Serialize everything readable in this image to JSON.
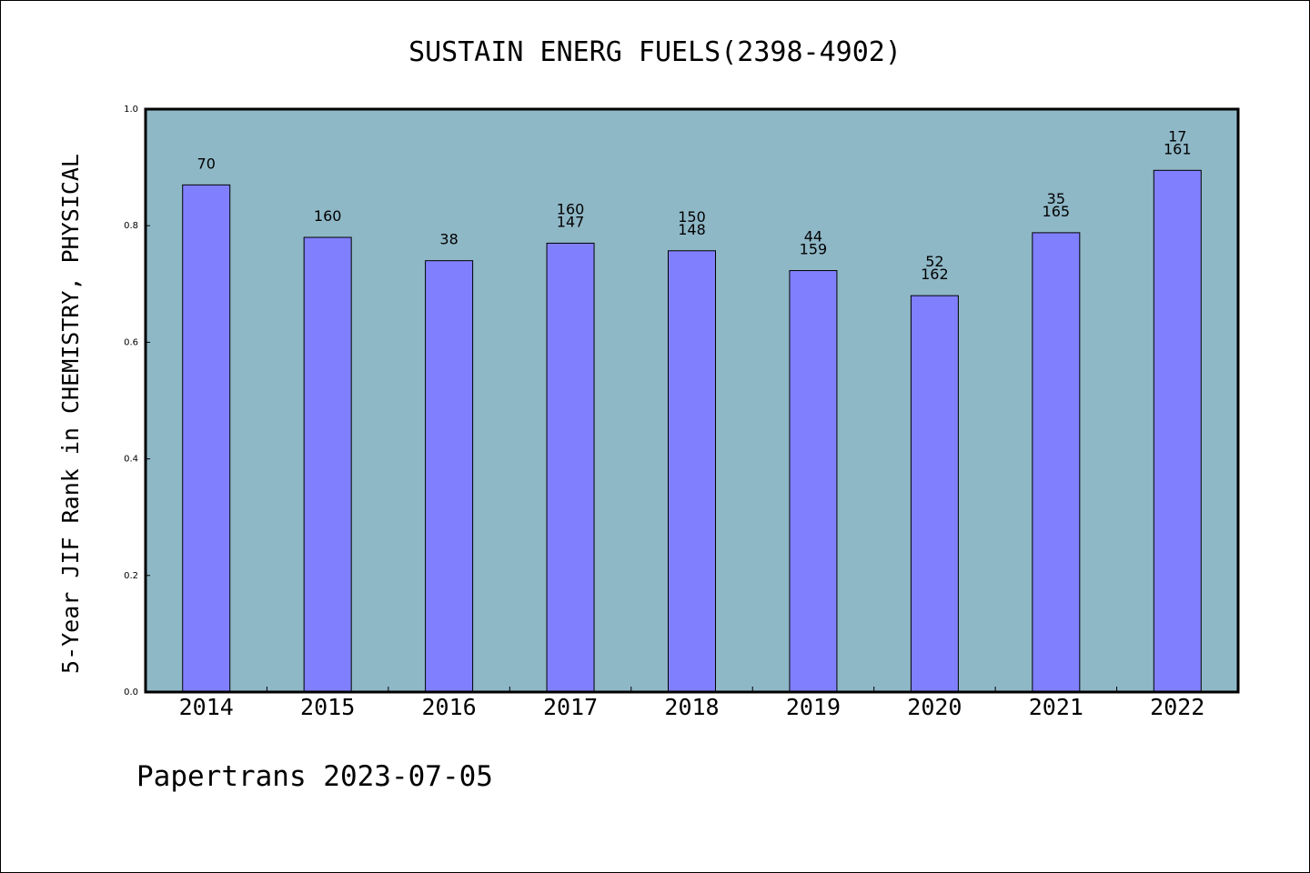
{
  "chart_data": {
    "type": "bar",
    "title": "SUSTAIN ENERG FUELS(2398-4902)",
    "ylabel": "5-Year JIF Rank in CHEMISTRY, PHYSICAL",
    "xlabel": "",
    "ylim": [
      0.0,
      1.0
    ],
    "yticks": [
      "0.0",
      "0.2",
      "0.4",
      "0.6",
      "0.8",
      "1.0"
    ],
    "categories": [
      "2014",
      "2015",
      "2016",
      "2017",
      "2018",
      "2019",
      "2020",
      "2021",
      "2022"
    ],
    "values": [
      0.87,
      0.78,
      0.74,
      0.77,
      0.757,
      0.723,
      0.68,
      0.788,
      0.895
    ],
    "bar_labels": [
      [
        "70"
      ],
      [
        "160"
      ],
      [
        "38"
      ],
      [
        "160",
        "147"
      ],
      [
        "150",
        "148"
      ],
      [
        "44",
        "159"
      ],
      [
        "52",
        "162"
      ],
      [
        "35",
        "165"
      ],
      [
        "17",
        "161"
      ]
    ],
    "grid": false,
    "colors": {
      "plot_background": "#8fb8c7",
      "bar_fill": "#8080ff",
      "bar_stroke": "#000000"
    }
  },
  "footer": {
    "text": "Papertrans 2023-07-05"
  }
}
